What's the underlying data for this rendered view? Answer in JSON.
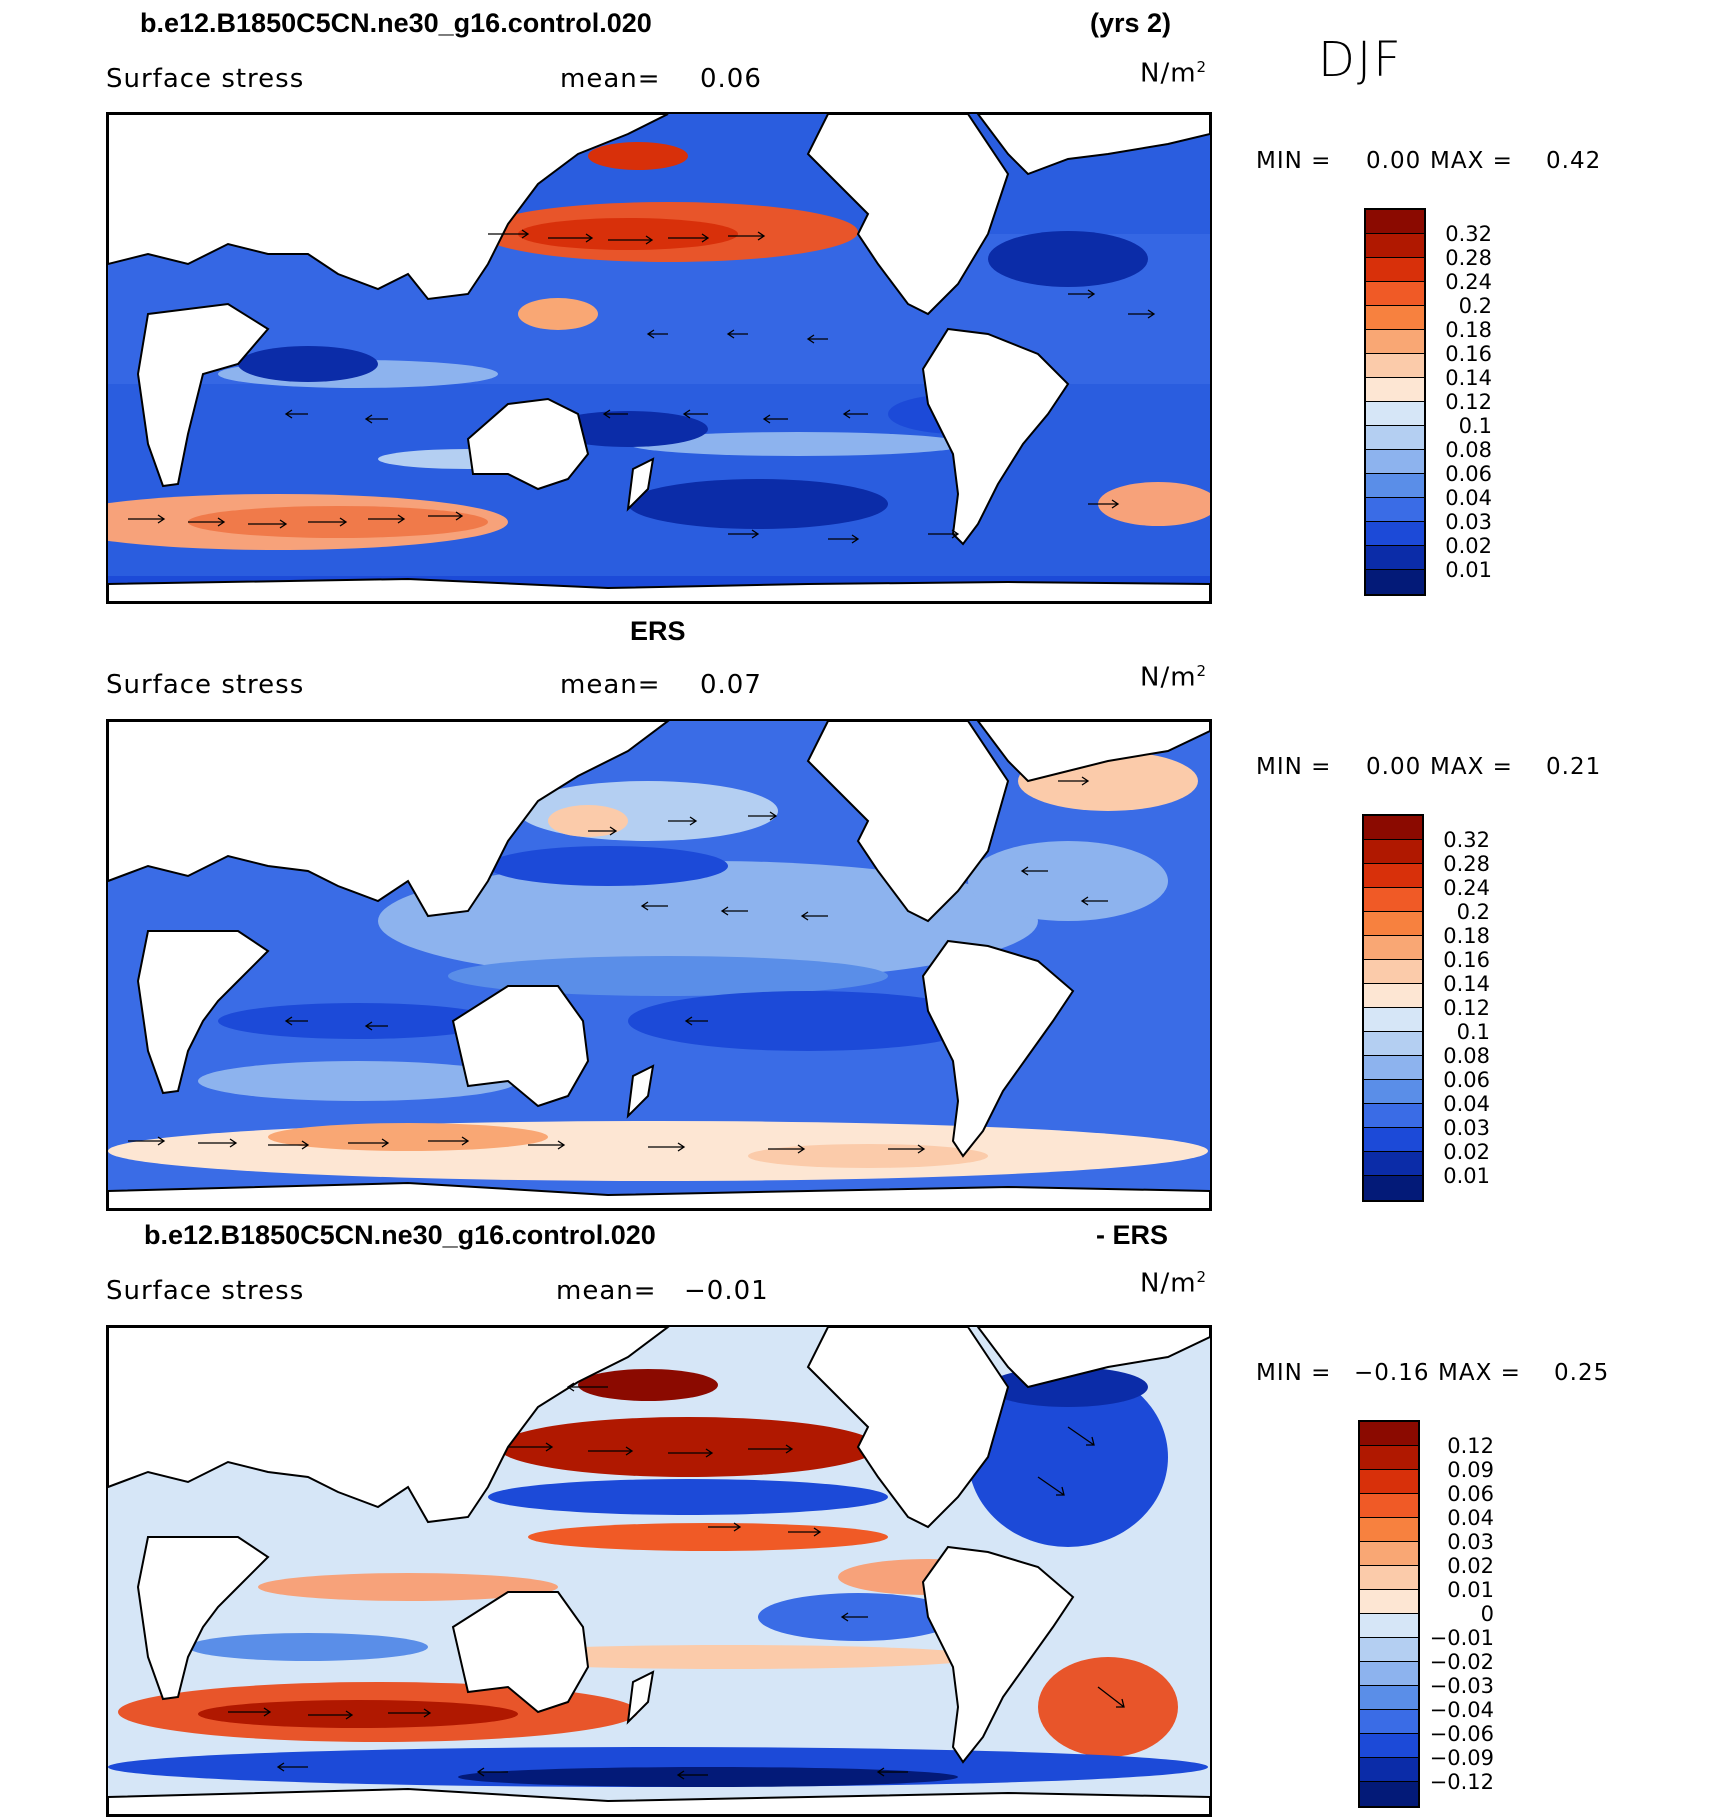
{
  "season": "DJF",
  "panels": [
    {
      "id": "model",
      "header_left": "b.e12.B1850C5CN.ne30_g16.control.020",
      "header_right": "(yrs 2)",
      "variable": "Surface stress",
      "mean_label": "mean=",
      "mean_value": "0.06",
      "units_base": "N/m",
      "units_exp": "2",
      "min_label": "MIN =",
      "min_value": "0.00",
      "max_label": "MAX =",
      "max_value": "0.42",
      "levels": [
        "0.32",
        "0.28",
        "0.24",
        "0.2",
        "0.18",
        "0.16",
        "0.14",
        "0.12",
        "0.1",
        "0.08",
        "0.06",
        "0.04",
        "0.03",
        "0.02",
        "0.01"
      ]
    },
    {
      "id": "obs",
      "header_center": "ERS",
      "variable": "Surface stress",
      "mean_label": "mean=",
      "mean_value": "0.07",
      "units_base": "N/m",
      "units_exp": "2",
      "min_label": "MIN =",
      "min_value": "0.00",
      "max_label": "MAX =",
      "max_value": "0.21",
      "levels": [
        "0.32",
        "0.28",
        "0.24",
        "0.2",
        "0.18",
        "0.16",
        "0.14",
        "0.12",
        "0.1",
        "0.08",
        "0.06",
        "0.04",
        "0.03",
        "0.02",
        "0.01"
      ]
    },
    {
      "id": "diff",
      "header_left": "b.e12.B1850C5CN.ne30_g16.control.020",
      "header_right": "- ERS",
      "variable": "Surface stress",
      "mean_label": "mean=",
      "mean_value": "−0.01",
      "units_base": "N/m",
      "units_exp": "2",
      "min_label": "MIN =",
      "min_value": "−0.16",
      "max_label": "MAX =",
      "max_value": "0.25",
      "levels": [
        "0.12",
        "0.09",
        "0.06",
        "0.04",
        "0.03",
        "0.02",
        "0.01",
        "0",
        "−0.01",
        "−0.02",
        "−0.03",
        "−0.04",
        "−0.06",
        "−0.09",
        "−0.12"
      ]
    }
  ],
  "colors": {
    "scale": [
      "#8b0a00",
      "#b01800",
      "#d8300a",
      "#f05a26",
      "#f7813f",
      "#f9a774",
      "#fbcbaa",
      "#fde6d3",
      "#d6e6f7",
      "#b4cff2",
      "#8db3ee",
      "#5a8ee8",
      "#3a6ce6",
      "#1c4ad8",
      "#0b2ca8",
      "#031a78"
    ],
    "land": "#ffffff",
    "coast": "#000000"
  }
}
